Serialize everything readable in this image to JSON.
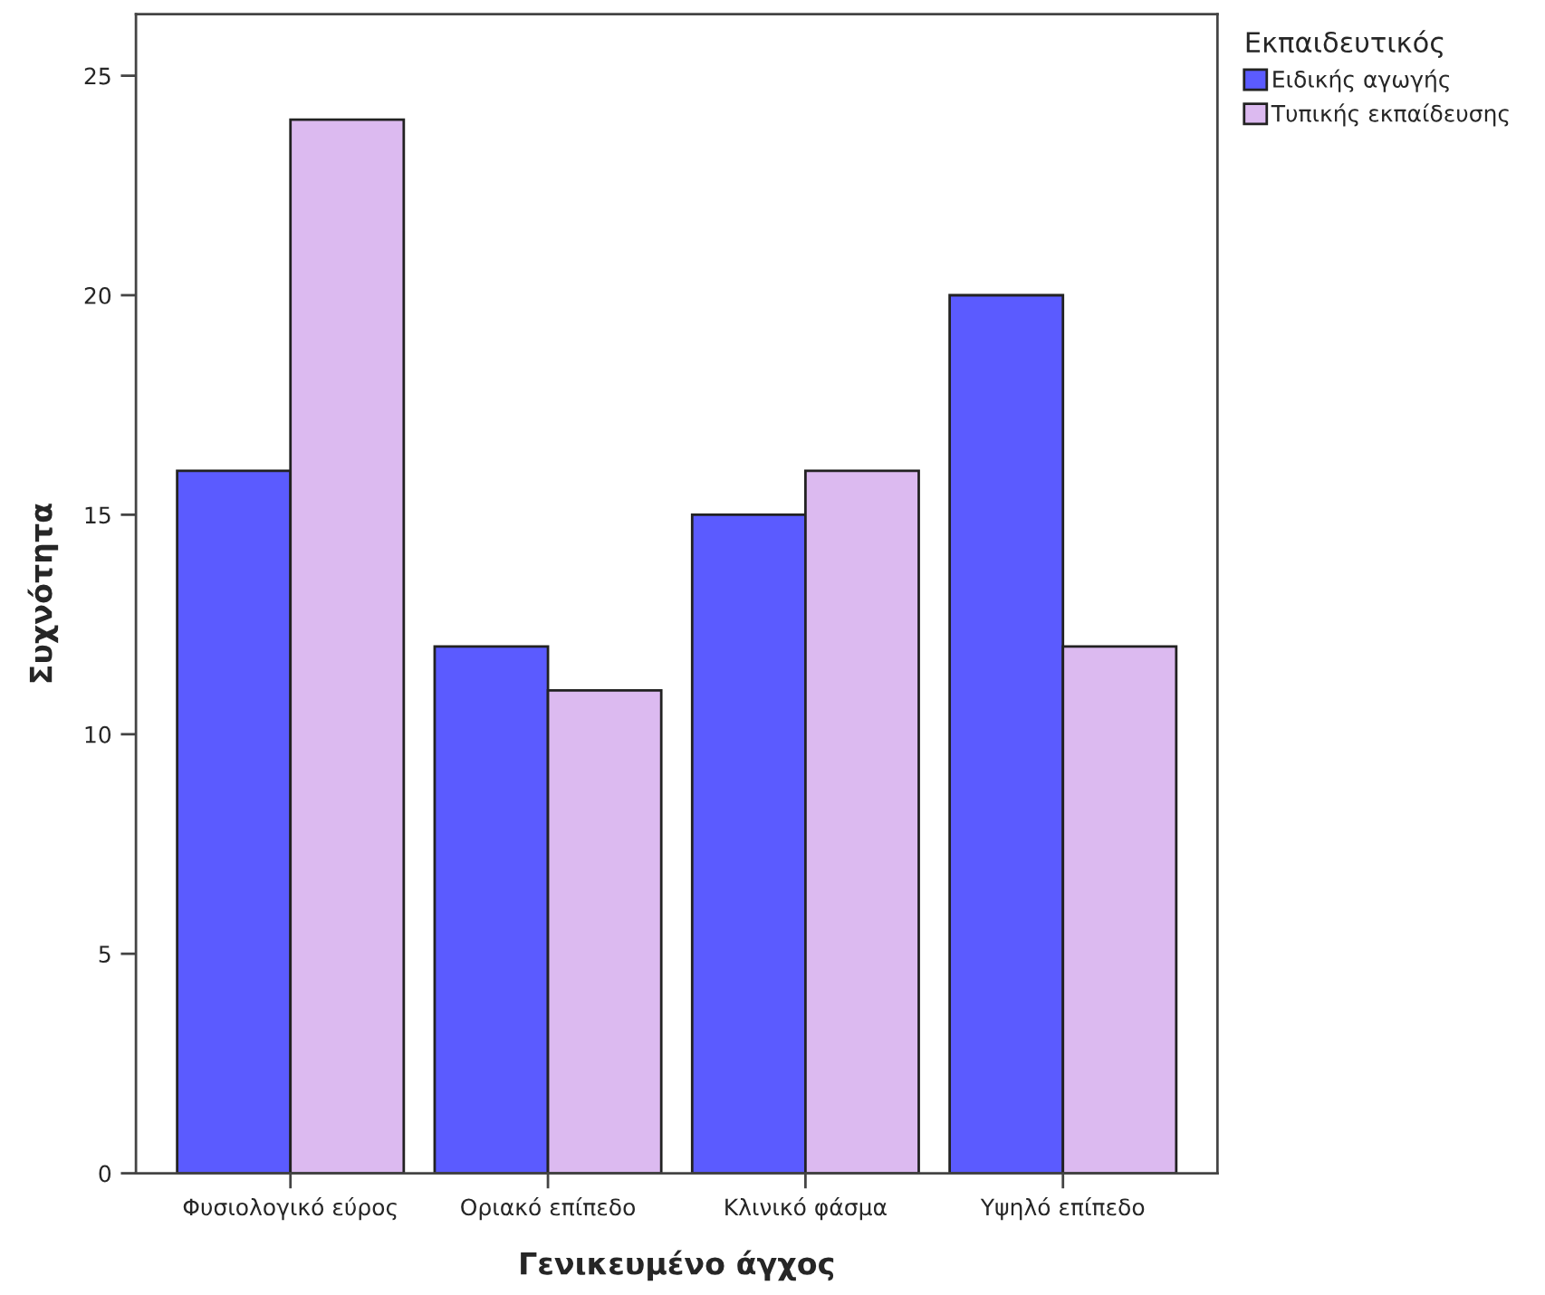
{
  "chart_data": {
    "type": "bar",
    "xlabel": "Γενικευμένο άγχος",
    "ylabel": "Συχνότητα",
    "legend_title": "Εκπαιδευτικός",
    "categories": [
      "Φυσιολογικό εύρος",
      "Οριακό επίπεδο",
      "Κλινικό φάσμα",
      "Υψηλό επίπεδο"
    ],
    "series": [
      {
        "name": "Ειδικής αγωγής",
        "color": "#5b5bff",
        "values": [
          16,
          12,
          15,
          20
        ]
      },
      {
        "name": "Τυπικής εκπαίδευσης",
        "color": "#dcbaf0",
        "values": [
          24,
          11,
          16,
          12
        ]
      }
    ],
    "ylim": [
      0,
      26.4
    ],
    "yticks": [
      0,
      5,
      10,
      15,
      20,
      25
    ],
    "grid": false,
    "legend": "top right"
  }
}
